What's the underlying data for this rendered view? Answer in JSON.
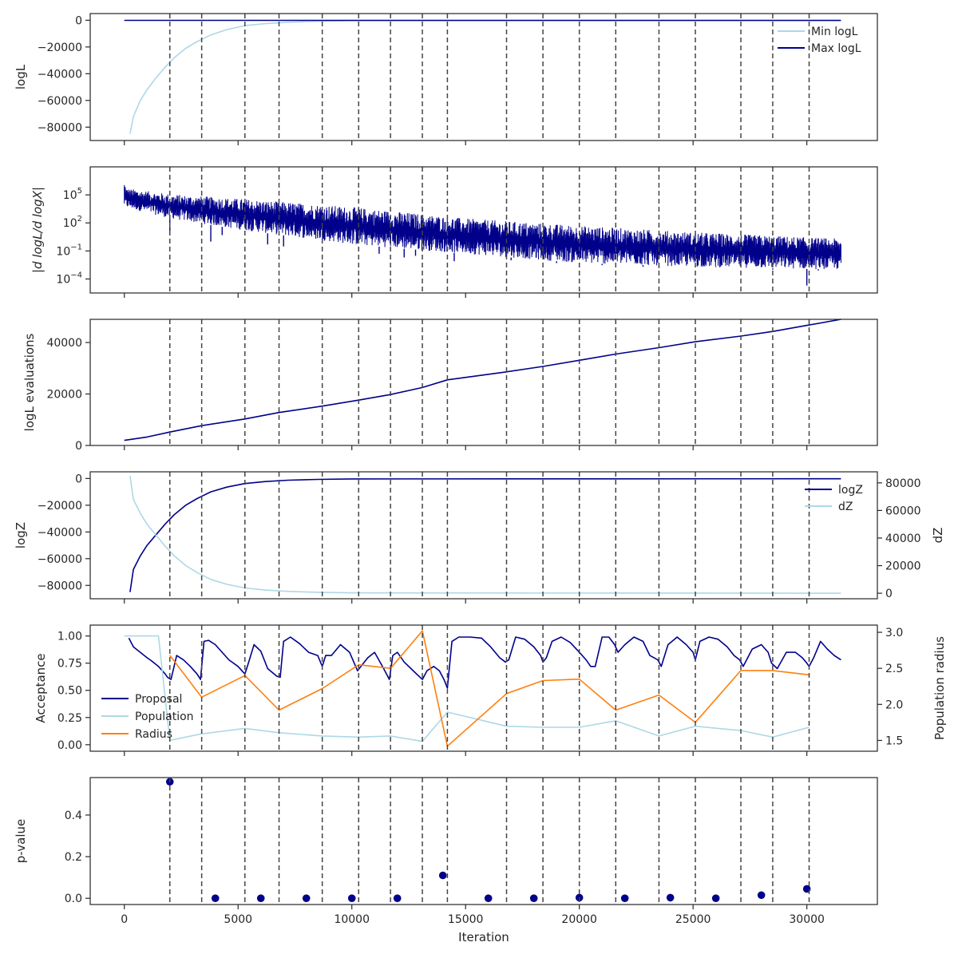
{
  "chart_data": [
    {
      "type": "line",
      "ylabel": "logL",
      "xlim": [
        -1500,
        33100
      ],
      "ylim": [
        -90000,
        5000
      ],
      "yticks": [
        0,
        -20000,
        -40000,
        -60000,
        -80000
      ],
      "ytick_labels": [
        "0",
        "−20000",
        "−40000",
        "−60000",
        "−80000"
      ],
      "legend": {
        "placement": "upper-right",
        "entries": [
          "Min logL",
          "Max logL"
        ]
      },
      "series": [
        {
          "name": "Min logL",
          "color": "#add8e6",
          "x": [
            250,
            400,
            700,
            1000,
            1400,
            1800,
            2200,
            2700,
            3200,
            3800,
            4500,
            5300,
            6200,
            7200,
            8500,
            10000,
            31500
          ],
          "y": [
            -85000,
            -72000,
            -60000,
            -52000,
            -43000,
            -35000,
            -28000,
            -21000,
            -16000,
            -11000,
            -7000,
            -4000,
            -2500,
            -1500,
            -800,
            -400,
            -300
          ]
        },
        {
          "name": "Max logL",
          "color": "#00008b",
          "x": [
            0,
            31500
          ],
          "y": [
            -100,
            -100
          ]
        }
      ]
    },
    {
      "type": "line",
      "ylabel": "|d logL/d logX|",
      "yscale": "log",
      "ylim": [
        3.16e-06,
        100000000
      ],
      "yticks": [
        0.0001,
        0.1,
        100,
        100000
      ],
      "ytick_labels": [
        {
          "base": "10",
          "exp": "−4"
        },
        {
          "base": "10",
          "exp": "−1"
        },
        {
          "base": "10",
          "exp": "2"
        },
        {
          "base": "10",
          "exp": "5"
        }
      ],
      "series": [
        {
          "name": "",
          "color": "#00008b",
          "x_range": [
            0,
            31500
          ],
          "upper_envelope": [
            [
              0,
              3000000
            ],
            [
              100,
              500000
            ],
            [
              2000,
              120000
            ],
            [
              5000,
              40000
            ],
            [
              10000,
              5000
            ],
            [
              15000,
              300
            ],
            [
              20000,
              50
            ],
            [
              25000,
              10
            ],
            [
              31500,
              2
            ]
          ],
          "lower_envelope": [
            [
              0,
              5000
            ],
            [
              2000,
              300
            ],
            [
              5000,
              20
            ],
            [
              10000,
              0.5
            ],
            [
              15000,
              0.05
            ],
            [
              20000,
              0.005
            ],
            [
              25000,
              0.002
            ],
            [
              31500,
              0.001
            ]
          ],
          "spikes": [
            [
              2000,
              10
            ],
            [
              3800,
              1
            ],
            [
              4300,
              5
            ],
            [
              6300,
              0.5
            ],
            [
              7000,
              0.3
            ],
            [
              11200,
              0.05
            ],
            [
              12300,
              0.02
            ],
            [
              12800,
              0.03
            ],
            [
              14500,
              0.008
            ],
            [
              17000,
              0.01
            ],
            [
              19000,
              0.005
            ],
            [
              21000,
              0.003
            ],
            [
              22800,
              0.002
            ],
            [
              23500,
              0.0015
            ],
            [
              26000,
              0.002
            ],
            [
              28500,
              0.001
            ],
            [
              30000,
              2e-05
            ],
            [
              30500,
              0.0008
            ]
          ]
        }
      ]
    },
    {
      "type": "line",
      "ylabel": "logL evaluations",
      "ylim": [
        0,
        49000
      ],
      "yticks": [
        0,
        20000,
        40000
      ],
      "ytick_labels": [
        "0",
        "20000",
        "40000"
      ],
      "series": [
        {
          "name": "",
          "color": "#00008b",
          "x": [
            0,
            1000,
            2000,
            3400,
            5300,
            6800,
            8700,
            10300,
            11700,
            13100,
            14200,
            16800,
            18400,
            20000,
            21600,
            23500,
            25100,
            27100,
            28500,
            30100,
            31500
          ],
          "y": [
            2000,
            3300,
            5200,
            7700,
            10300,
            12800,
            15300,
            17600,
            19800,
            22500,
            25500,
            28600,
            30700,
            33100,
            35500,
            38000,
            40300,
            42500,
            44300,
            46800,
            49000
          ]
        }
      ]
    },
    {
      "type": "line",
      "ylabel": "logZ",
      "y2label": "dZ",
      "ylim": [
        -90000,
        5000
      ],
      "yticks": [
        0,
        -20000,
        -40000,
        -60000,
        -80000
      ],
      "ytick_labels": [
        "0",
        "−20000",
        "−40000",
        "−60000",
        "−80000"
      ],
      "y2lim": [
        -4000,
        88000
      ],
      "y2ticks": [
        0,
        20000,
        40000,
        60000,
        80000
      ],
      "y2tick_labels": [
        "0",
        "20000",
        "40000",
        "60000",
        "80000"
      ],
      "legend": {
        "placement": "upper-right",
        "entries": [
          "logZ",
          "dZ"
        ]
      },
      "series": [
        {
          "name": "logZ",
          "color": "#00008b",
          "axis": "left",
          "x": [
            250,
            400,
            700,
            1000,
            1400,
            1800,
            2200,
            2700,
            3200,
            3800,
            4500,
            5300,
            6200,
            7200,
            8500,
            10000,
            31500
          ],
          "y": [
            -85000,
            -68000,
            -58000,
            -50000,
            -42000,
            -34000,
            -27000,
            -20000,
            -15000,
            -10000,
            -6500,
            -3800,
            -2300,
            -1300,
            -700,
            -300,
            -200
          ]
        },
        {
          "name": "dZ",
          "color": "#add8e6",
          "axis": "right",
          "x": [
            250,
            400,
            700,
            1000,
            1400,
            1800,
            2200,
            2700,
            3200,
            3800,
            4500,
            5300,
            6200,
            7200,
            8500,
            10000,
            31500
          ],
          "y": [
            85000,
            68000,
            58000,
            50000,
            42000,
            34000,
            27000,
            20000,
            15000,
            10000,
            6500,
            3800,
            2300,
            1300,
            700,
            300,
            0
          ]
        }
      ]
    },
    {
      "type": "line",
      "ylabel": "Acceptance",
      "y2label": "Population radius",
      "ylim": [
        -0.06,
        1.1
      ],
      "yticks": [
        0.0,
        0.25,
        0.5,
        0.75,
        1.0
      ],
      "ytick_labels": [
        "0.00",
        "0.25",
        "0.50",
        "0.75",
        "1.00"
      ],
      "y2lim": [
        1.35,
        3.1
      ],
      "y2ticks": [
        1.5,
        2.0,
        2.5,
        3.0
      ],
      "y2tick_labels": [
        "1.5",
        "2.0",
        "2.5",
        "3.0"
      ],
      "legend": {
        "placement": "lower-left",
        "entries": [
          "Proposal",
          "Population",
          "Radius"
        ]
      },
      "series": [
        {
          "name": "Proposal",
          "color": "#00008b",
          "axis": "left",
          "x": [
            200,
            400,
            700,
            1000,
            1200,
            1500,
            1800,
            1900,
            2050,
            2300,
            2600,
            2900,
            3200,
            3350,
            3500,
            3700,
            4000,
            4300,
            4600,
            5000,
            5300,
            5450,
            5700,
            6000,
            6300,
            6700,
            6850,
            7000,
            7300,
            7700,
            8100,
            8500,
            8700,
            8850,
            9100,
            9500,
            9900,
            10250,
            10400,
            10700,
            11000,
            11400,
            11650,
            11800,
            12000,
            12300,
            12600,
            13000,
            13100,
            13300,
            13600,
            13850,
            14050,
            14200,
            14400,
            14700,
            15200,
            15700,
            16100,
            16500,
            16750,
            16900,
            17200,
            17600,
            18000,
            18300,
            18400,
            18550,
            18800,
            19200,
            19600,
            20000,
            20300,
            20500,
            20700,
            21000,
            21300,
            21550,
            21700,
            22000,
            22400,
            22800,
            23100,
            23450,
            23600,
            23900,
            24300,
            24700,
            25000,
            25100,
            25300,
            25700,
            26100,
            26500,
            26800,
            27050,
            27200,
            27600,
            28000,
            28300,
            28450,
            28700,
            29100,
            29500,
            29800,
            30000,
            30100,
            30300,
            30600,
            30900,
            31200,
            31500
          ],
          "y": [
            0.98,
            0.9,
            0.85,
            0.8,
            0.77,
            0.72,
            0.65,
            0.62,
            0.6,
            0.82,
            0.78,
            0.72,
            0.65,
            0.6,
            0.95,
            0.96,
            0.92,
            0.85,
            0.78,
            0.72,
            0.65,
            0.75,
            0.92,
            0.86,
            0.7,
            0.63,
            0.62,
            0.95,
            0.99,
            0.93,
            0.85,
            0.82,
            0.72,
            0.82,
            0.82,
            0.92,
            0.85,
            0.68,
            0.72,
            0.8,
            0.85,
            0.7,
            0.6,
            0.82,
            0.85,
            0.76,
            0.7,
            0.62,
            0.6,
            0.68,
            0.72,
            0.68,
            0.6,
            0.52,
            0.95,
            0.99,
            0.99,
            0.98,
            0.9,
            0.8,
            0.76,
            0.78,
            0.99,
            0.97,
            0.9,
            0.82,
            0.76,
            0.8,
            0.95,
            0.99,
            0.94,
            0.85,
            0.78,
            0.72,
            0.72,
            0.99,
            0.99,
            0.92,
            0.85,
            0.92,
            0.99,
            0.95,
            0.82,
            0.78,
            0.72,
            0.92,
            0.99,
            0.92,
            0.85,
            0.78,
            0.95,
            0.99,
            0.97,
            0.9,
            0.82,
            0.78,
            0.72,
            0.88,
            0.92,
            0.85,
            0.75,
            0.7,
            0.85,
            0.85,
            0.8,
            0.75,
            0.72,
            0.8,
            0.95,
            0.88,
            0.82,
            0.78
          ]
        },
        {
          "name": "Population",
          "color": "#add8e6",
          "axis": "left",
          "x": [
            0,
            1500,
            2000,
            3400,
            5300,
            6800,
            8700,
            10300,
            11700,
            13100,
            14200,
            16800,
            18400,
            20000,
            21600,
            23500,
            25100,
            27100,
            28500,
            30100
          ],
          "y": [
            1.0,
            1.0,
            0.04,
            0.1,
            0.15,
            0.11,
            0.08,
            0.07,
            0.08,
            0.03,
            0.3,
            0.17,
            0.16,
            0.16,
            0.22,
            0.08,
            0.17,
            0.13,
            0.07,
            0.16
          ]
        },
        {
          "name": "Radius",
          "color": "#ff7f0e",
          "axis": "right",
          "x": [
            2000,
            3400,
            5300,
            6800,
            8700,
            10300,
            11700,
            13100,
            14200,
            16800,
            18400,
            20000,
            21600,
            23500,
            25100,
            27100,
            28500,
            30100
          ],
          "y": [
            2.68,
            2.1,
            2.4,
            1.92,
            2.22,
            2.55,
            2.5,
            3.02,
            1.42,
            2.15,
            2.33,
            2.35,
            1.92,
            2.13,
            1.75,
            2.47,
            2.47,
            2.41
          ]
        }
      ]
    },
    {
      "type": "scatter",
      "ylabel": "p-value",
      "xlabel": "Iteration",
      "ylim": [
        -0.03,
        0.58
      ],
      "yticks": [
        0.0,
        0.2,
        0.4
      ],
      "ytick_labels": [
        "0.0",
        "0.2",
        "0.4"
      ],
      "xticks": [
        0,
        5000,
        10000,
        15000,
        20000,
        25000,
        30000
      ],
      "xtick_labels": [
        "0",
        "5000",
        "10000",
        "15000",
        "20000",
        "25000",
        "30000"
      ],
      "series": [
        {
          "name": "",
          "color": "#00008b",
          "x": [
            2000,
            4000,
            6000,
            8000,
            10000,
            12000,
            14000,
            16000,
            18000,
            20000,
            22000,
            24000,
            26000,
            28000,
            30000
          ],
          "y": [
            0.56,
            0.0,
            0.0,
            0.0,
            0.0,
            0.0,
            0.11,
            0.0,
            0.0,
            0.003,
            0.0,
            0.003,
            0.0,
            0.015,
            0.045
          ]
        }
      ]
    }
  ],
  "vlines": {
    "color": "#444444",
    "x": [
      2000,
      3400,
      5300,
      6800,
      8700,
      10300,
      11700,
      13100,
      14200,
      16800,
      18400,
      20000,
      21600,
      23500,
      25100,
      27100,
      28500,
      30100
    ]
  }
}
